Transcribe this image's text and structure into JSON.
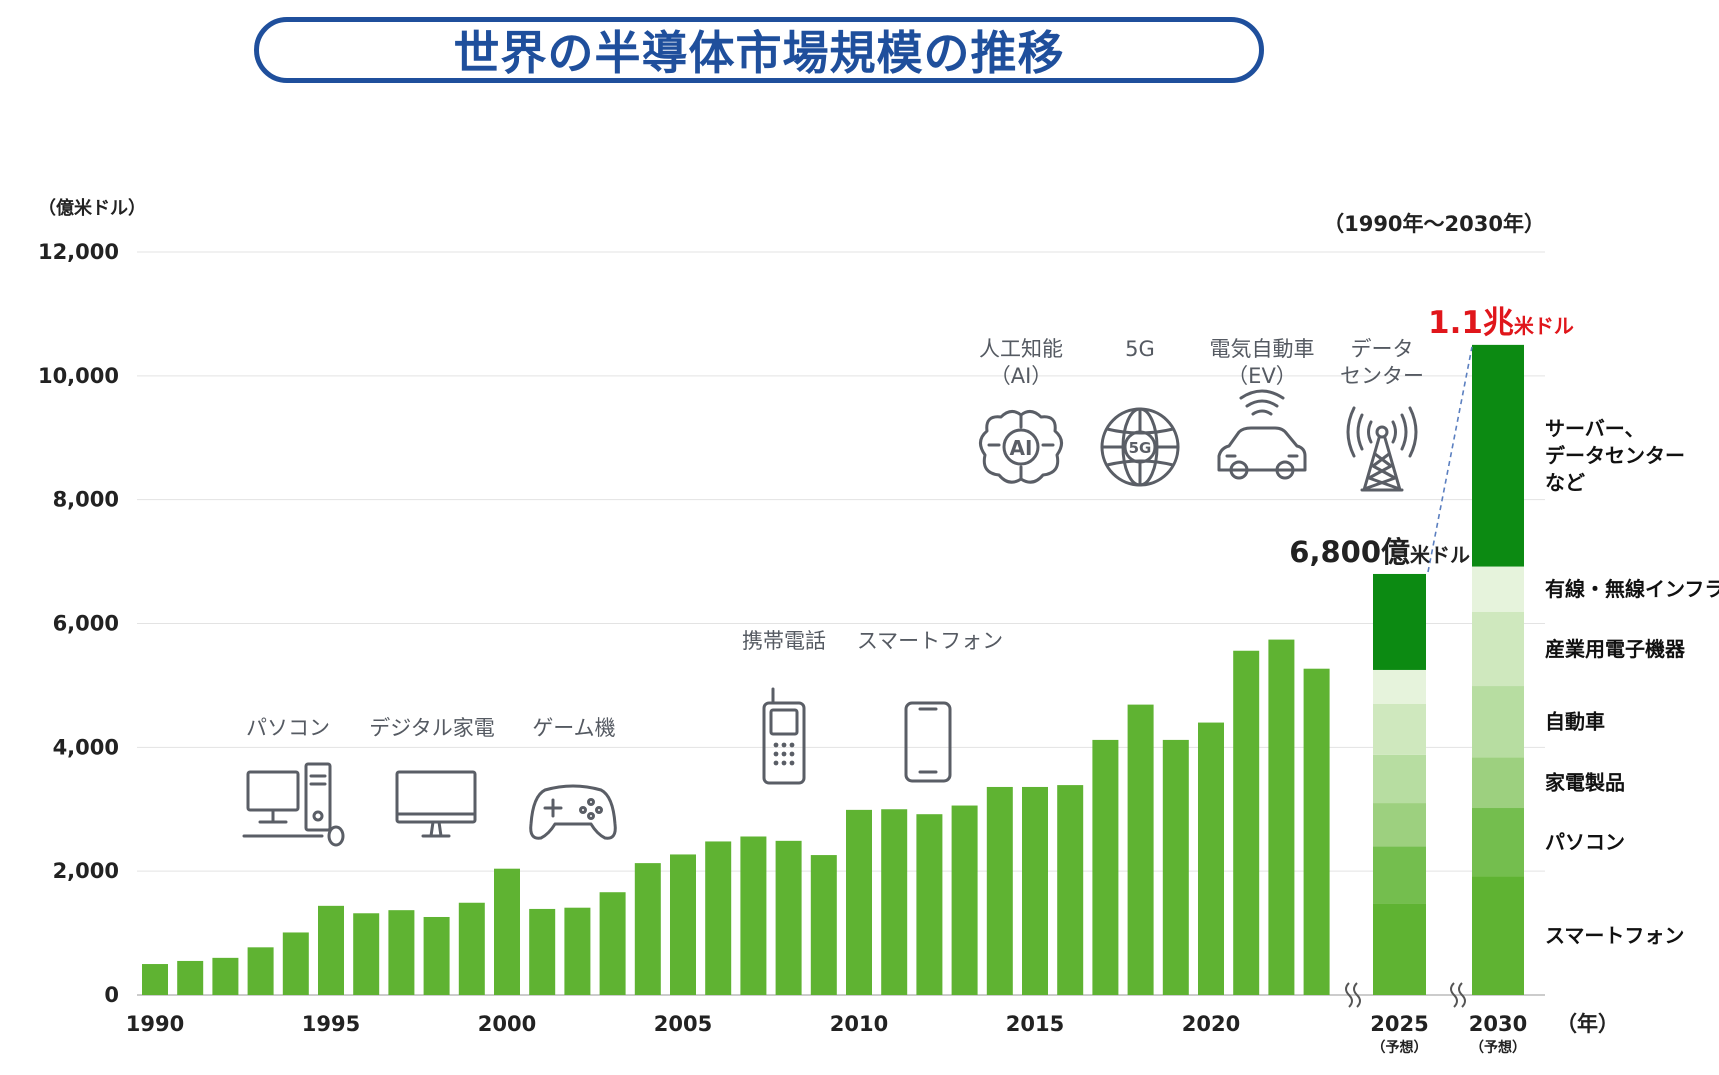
{
  "title": "世界の半導体市場規模の推移",
  "chart_data": {
    "type": "bar",
    "unit_label": "（億米ドル）",
    "period_label": "（1990年〜2030年）",
    "x_unit_label": "（年）",
    "ylim": [
      0,
      12000
    ],
    "y_ticks": [
      0,
      2000,
      4000,
      6000,
      8000,
      10000,
      12000
    ],
    "y_tick_labels": [
      "0",
      "2,000",
      "4,000",
      "6,000",
      "8,000",
      "10,000",
      "12,000"
    ],
    "x_tick_labels": [
      "1990",
      "1995",
      "2000",
      "2005",
      "2010",
      "2015",
      "2020"
    ],
    "years": [
      1990,
      1991,
      1992,
      1993,
      1994,
      1995,
      1996,
      1997,
      1998,
      1999,
      2000,
      2001,
      2002,
      2003,
      2004,
      2005,
      2006,
      2007,
      2008,
      2009,
      2010,
      2011,
      2012,
      2013,
      2014,
      2015,
      2016,
      2017,
      2018,
      2019,
      2020,
      2021,
      2022,
      2023
    ],
    "values": [
      500,
      550,
      600,
      770,
      1010,
      1440,
      1320,
      1370,
      1260,
      1490,
      2040,
      1390,
      1410,
      1660,
      2130,
      2270,
      2480,
      2560,
      2490,
      2260,
      2990,
      3000,
      2920,
      3060,
      3360,
      3360,
      3390,
      4120,
      4690,
      4120,
      4400,
      5560,
      5740,
      5270
    ],
    "forecast": [
      {
        "year_label": "2025",
        "note": "（予想）",
        "total_label_number": "6,800億",
        "total_label_unit": "米ドル",
        "segments": [
          {
            "name": "スマートフォン",
            "value": 1480
          },
          {
            "name": "パソコン",
            "value": 920
          },
          {
            "name": "家電製品",
            "value": 700
          },
          {
            "name": "自動車",
            "value": 780
          },
          {
            "name": "産業用電子機器",
            "value": 820
          },
          {
            "name": "有線・無線インフラ",
            "value": 550
          },
          {
            "name": "サーバー、データセンターなど",
            "value": 1550
          }
        ]
      },
      {
        "year_label": "2030",
        "note": "（予想）",
        "total_label_number": "1.1兆",
        "total_label_unit": "米ドル",
        "segments": [
          {
            "name": "スマートフォン",
            "value": 1920
          },
          {
            "name": "パソコン",
            "value": 1100
          },
          {
            "name": "家電製品",
            "value": 820
          },
          {
            "name": "自動車",
            "value": 1150
          },
          {
            "name": "産業用電子機器",
            "value": 1200
          },
          {
            "name": "有線・無線インフラ",
            "value": 730
          },
          {
            "name": "サーバー、データセンターなど",
            "value": 3580
          }
        ]
      }
    ],
    "segment_labels": [
      {
        "lines": [
          "スマートフォン"
        ]
      },
      {
        "lines": [
          "パソコン"
        ]
      },
      {
        "lines": [
          "家電製品"
        ]
      },
      {
        "lines": [
          "自動車"
        ]
      },
      {
        "lines": [
          "産業用電子機器"
        ]
      },
      {
        "lines": [
          "有線・無線インフラ"
        ]
      },
      {
        "lines": [
          "サーバー、",
          "データセンター",
          "など"
        ]
      }
    ],
    "annotations": [
      {
        "id": "pc",
        "lines": [
          "パソコン"
        ],
        "icon": "desktop-pc-icon"
      },
      {
        "id": "tv",
        "lines": [
          "デジタル家電"
        ],
        "icon": "monitor-icon"
      },
      {
        "id": "game",
        "lines": [
          "ゲーム機"
        ],
        "icon": "gamepad-icon"
      },
      {
        "id": "phone",
        "lines": [
          "携帯電話"
        ],
        "icon": "mobile-phone-icon"
      },
      {
        "id": "smartphone",
        "lines": [
          "スマートフォン"
        ],
        "icon": "smartphone-icon"
      },
      {
        "id": "ai",
        "lines": [
          "人工知能",
          "（AI）"
        ],
        "icon": "ai-brain-icon",
        "icon_text": "AI"
      },
      {
        "id": "5g",
        "lines": [
          "5G"
        ],
        "icon": "globe-5g-icon",
        "icon_text": "5G"
      },
      {
        "id": "ev",
        "lines": [
          "電気自動車",
          "（EV）"
        ],
        "icon": "electric-car-icon"
      },
      {
        "id": "dc",
        "lines": [
          "データ",
          "センター"
        ],
        "icon": "antenna-tower-icon"
      }
    ],
    "colors": {
      "historic": "#5fb332",
      "forecast_segments": [
        "#5fb332",
        "#74be4e",
        "#9dd07f",
        "#b7dda1",
        "#cfe8be",
        "#e6f3dc",
        "#0c8a12"
      ],
      "total_2030": "#e0161b",
      "total_2025": "#222222",
      "title": "#1f4f9c"
    }
  }
}
